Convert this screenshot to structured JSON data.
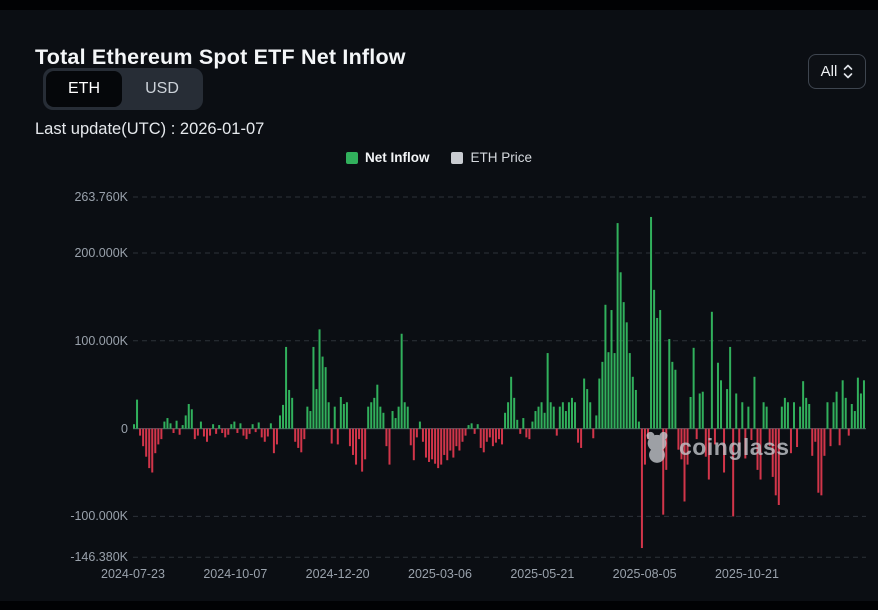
{
  "header": {
    "title": "Total Ethereum Spot ETF Net Inflow",
    "unit_toggle": {
      "options": [
        "ETH",
        "USD"
      ],
      "selected": "ETH"
    },
    "last_update_label": "Last update(UTC) : 2026-01-07",
    "range_select": {
      "value": "All"
    }
  },
  "legend": [
    {
      "label": "Net Inflow",
      "color": "#31b05c"
    },
    {
      "label": "ETH Price",
      "color": "#c9ccd1"
    }
  ],
  "watermark": {
    "text": "coinglass"
  },
  "colors": {
    "background": "#0b0e13",
    "positive_bar": "#31b05c",
    "negative_bar": "#d2354a",
    "axis_text": "#99a1ab",
    "gridline": "#2c3239",
    "zero_line": "#4a5059"
  },
  "chart_data": {
    "type": "bar",
    "title": "Total Ethereum Spot ETF Net Inflow",
    "unit": "thousand ETH",
    "legend_position": "top",
    "grid": "dashed-horizontal",
    "ylim": [
      -146.38,
      263.76
    ],
    "y_tick_labels": [
      "263.760K",
      "200.000K",
      "100.000K",
      "0",
      "-100.000K",
      "-146.380K"
    ],
    "y_tick_values": [
      263.76,
      200,
      100,
      0,
      -100,
      -146.38
    ],
    "x_tick_labels": [
      "2024-07-23",
      "2024-10-07",
      "2024-12-20",
      "2025-03-06",
      "2025-05-21",
      "2025-08-05",
      "2025-10-21"
    ],
    "series": [
      {
        "name": "Net Inflow",
        "color_pos": "#31b05c",
        "color_neg": "#d2354a",
        "values": [
          5,
          33,
          -8,
          -20,
          -32,
          -45,
          -50,
          -28,
          -18,
          -12,
          8,
          12,
          6,
          -5,
          9,
          -7,
          4,
          15,
          28,
          22,
          -12,
          -8,
          8,
          -9,
          -15,
          -8,
          5,
          -6,
          4,
          -5,
          -10,
          -7,
          5,
          8,
          -5,
          6,
          -8,
          -12,
          -6,
          5,
          -4,
          7,
          -10,
          -15,
          -9,
          6,
          -28,
          -18,
          15,
          27,
          93,
          44,
          35,
          -15,
          -22,
          -27,
          -12,
          25,
          20,
          93,
          45,
          113,
          82,
          70,
          30,
          -17,
          25,
          -18,
          36,
          28,
          30,
          -20,
          -30,
          -41,
          -12,
          -49,
          -35,
          25,
          30,
          35,
          50,
          25,
          18,
          -20,
          -41,
          20,
          12,
          25,
          108,
          30,
          25,
          -19,
          -36,
          -10,
          8,
          -15,
          -33,
          -38,
          -35,
          -40,
          -45,
          -41,
          -30,
          -36,
          -25,
          -33,
          -20,
          -25,
          -15,
          -8,
          4,
          6,
          -6,
          5,
          -22,
          -27,
          -15,
          -10,
          -20,
          -16,
          -12,
          -18,
          18,
          30,
          59,
          35,
          10,
          -6,
          12,
          -10,
          -12,
          8,
          20,
          25,
          30,
          18,
          86,
          30,
          25,
          -8,
          25,
          30,
          20,
          30,
          35,
          30,
          -16,
          -22,
          57,
          45,
          30,
          -11,
          15,
          57,
          76,
          141,
          87,
          135,
          86,
          234,
          178,
          144,
          121,
          86,
          59,
          44,
          8,
          -136,
          -41,
          -12,
          241,
          158,
          126,
          135,
          -98,
          -47,
          102,
          76,
          67,
          -24,
          -35,
          -83,
          -41,
          36,
          92,
          -12,
          40,
          42,
          -32,
          -58,
          133,
          -18,
          75,
          55,
          -50,
          45,
          93,
          -100,
          40,
          -25,
          30,
          -34,
          25,
          -13,
          59,
          -47,
          -58,
          30,
          25,
          -20,
          -55,
          -76,
          -87,
          25,
          35,
          30,
          -28,
          30,
          -21,
          25,
          54,
          35,
          28,
          -31,
          -15,
          -73,
          -76,
          -31,
          30,
          -20,
          30,
          42,
          -19,
          55,
          35,
          -8,
          28,
          20,
          58,
          40,
          55
        ]
      },
      {
        "name": "ETH Price",
        "color": "#c9ccd1",
        "values": []
      }
    ]
  }
}
